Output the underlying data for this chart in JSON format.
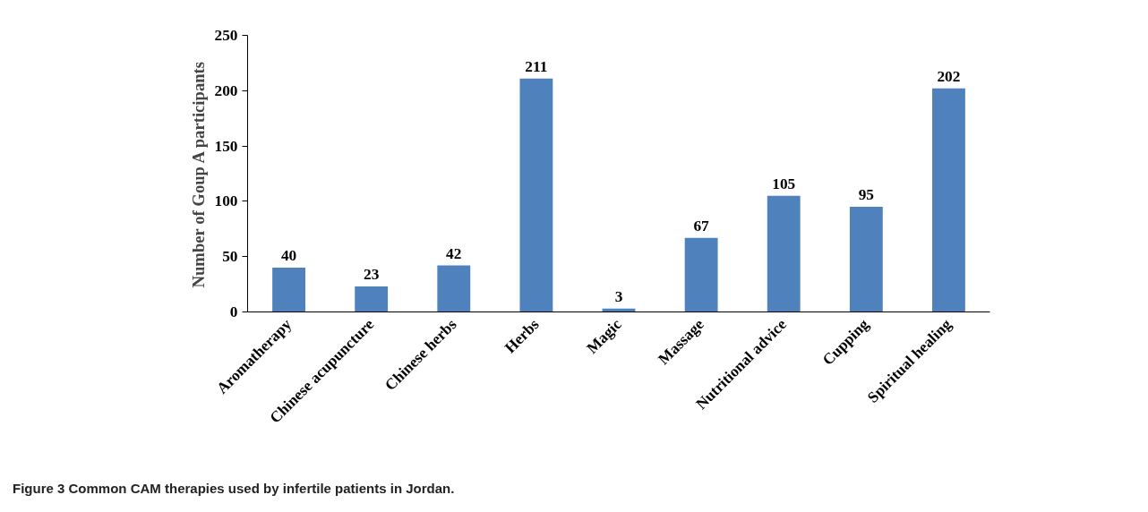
{
  "chart_data": {
    "type": "bar",
    "ylabel": "Number of Goup A participants",
    "categories": [
      "Aromatherapy",
      "Chinese acupuncture",
      "Chinese herbs",
      "Herbs",
      "Magic",
      "Massage",
      "Nutritional advice",
      "Cupping",
      "Spiritual healing"
    ],
    "values": [
      40,
      23,
      42,
      211,
      3,
      67,
      105,
      95,
      202
    ],
    "color": "#4f81bd",
    "ylim": [
      0,
      250
    ],
    "yticks": [
      0,
      50,
      100,
      150,
      200,
      250
    ],
    "grid": false,
    "data_labels": true,
    "annotations": [
      "Figure 3 Common CAM therapies used by infertile patients in Jordan."
    ]
  }
}
